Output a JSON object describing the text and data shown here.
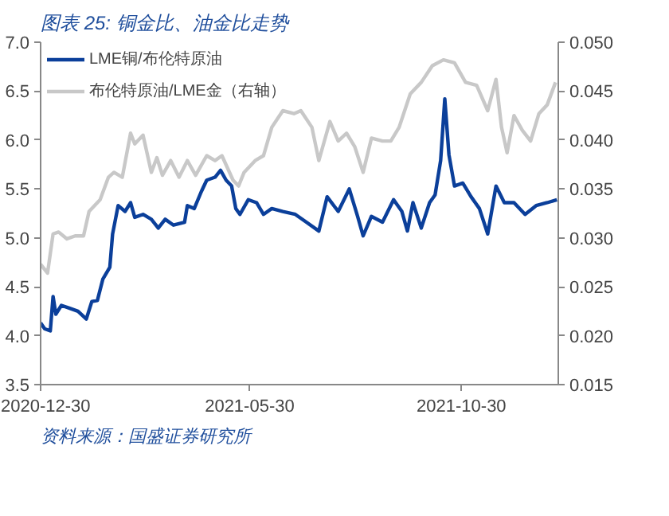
{
  "chart_data": {
    "type": "line",
    "title": "图表 25: 铜金比、油金比走势",
    "annotations": [
      "资料来源：国盛证券研究所"
    ],
    "xlim": [
      "2020-12-30",
      "2022-01-08"
    ],
    "xticks": [
      "2020-12-30",
      "2021-05-30",
      "2021-10-30"
    ],
    "ylim": [
      3.5,
      7.0
    ],
    "yticks": [
      {
        "value": 3.5,
        "label": "3.5"
      },
      {
        "value": 4.0,
        "label": "4.0"
      },
      {
        "value": 4.5,
        "label": "4.5"
      },
      {
        "value": 5.0,
        "label": "5.0"
      },
      {
        "value": 5.5,
        "label": "5.5"
      },
      {
        "value": 6.0,
        "label": "6.0"
      },
      {
        "value": 6.5,
        "label": "6.5"
      },
      {
        "value": 7.0,
        "label": "7.0"
      }
    ],
    "y2lim": [
      0.015,
      0.05
    ],
    "y2ticks": [
      {
        "value": 0.015,
        "label": "0.015"
      },
      {
        "value": 0.02,
        "label": "0.020"
      },
      {
        "value": 0.025,
        "label": "0.025"
      },
      {
        "value": 0.03,
        "label": "0.030"
      },
      {
        "value": 0.035,
        "label": "0.035"
      },
      {
        "value": 0.04,
        "label": "0.040"
      },
      {
        "value": 0.045,
        "label": "0.045"
      },
      {
        "value": 0.05,
        "label": "0.050"
      }
    ],
    "grid": false,
    "legend": "top",
    "marker": "none",
    "line_style": "solid",
    "series": [
      {
        "name": "LME铜/布伦特原油",
        "color": "#0b3f9a",
        "x": [
          "2020-12-30",
          "2021-01-02",
          "2021-01-06",
          "2021-01-08",
          "2021-01-10",
          "2021-01-14",
          "2021-01-20",
          "2021-01-26",
          "2021-02-01",
          "2021-02-05",
          "2021-02-09",
          "2021-02-13",
          "2021-02-18",
          "2021-02-20",
          "2021-02-24",
          "2021-03-01",
          "2021-03-05",
          "2021-03-08",
          "2021-03-14",
          "2021-03-20",
          "2021-03-25",
          "2021-03-30",
          "2021-04-05",
          "2021-04-13",
          "2021-04-15",
          "2021-04-20",
          "2021-04-25",
          "2021-04-29",
          "2021-05-05",
          "2021-05-09",
          "2021-05-13",
          "2021-05-17",
          "2021-05-20",
          "2021-05-23",
          "2021-05-29",
          "2021-06-04",
          "2021-06-09",
          "2021-06-15",
          "2021-06-23",
          "2021-07-02",
          "2021-07-10",
          "2021-07-19",
          "2021-07-25",
          "2021-08-02",
          "2021-08-10",
          "2021-08-16",
          "2021-08-20",
          "2021-08-26",
          "2021-09-03",
          "2021-09-11",
          "2021-09-17",
          "2021-09-21",
          "2021-09-25",
          "2021-10-01",
          "2021-10-07",
          "2021-10-11",
          "2021-10-15",
          "2021-10-18",
          "2021-10-21",
          "2021-10-25",
          "2021-10-31",
          "2021-11-06",
          "2021-11-12",
          "2021-11-18",
          "2021-11-24",
          "2021-11-30",
          "2021-12-07",
          "2021-12-15",
          "2021-12-23",
          "2021-12-31",
          "2022-01-07"
        ],
        "values": [
          4.13,
          4.07,
          4.05,
          4.4,
          4.22,
          4.31,
          4.28,
          4.25,
          4.17,
          4.35,
          4.36,
          4.58,
          4.7,
          5.04,
          5.33,
          5.27,
          5.36,
          5.21,
          5.24,
          5.19,
          5.1,
          5.19,
          5.13,
          5.16,
          5.33,
          5.3,
          5.47,
          5.59,
          5.62,
          5.69,
          5.59,
          5.53,
          5.3,
          5.24,
          5.39,
          5.36,
          5.24,
          5.3,
          5.27,
          5.24,
          5.16,
          5.07,
          5.42,
          5.27,
          5.5,
          5.22,
          5.02,
          5.22,
          5.16,
          5.39,
          5.27,
          5.07,
          5.36,
          5.1,
          5.36,
          5.44,
          5.79,
          6.42,
          5.85,
          5.53,
          5.56,
          5.42,
          5.3,
          5.04,
          5.53,
          5.36,
          5.36,
          5.24,
          5.33,
          5.36,
          5.39
        ]
      },
      {
        "name": "布伦特原油/LME金（右轴）",
        "color": "#c8c8c8",
        "axis": "y2",
        "x": [
          "2020-12-30",
          "2021-01-04",
          "2021-01-08",
          "2021-01-12",
          "2021-01-18",
          "2021-01-24",
          "2021-01-30",
          "2021-02-03",
          "2021-02-11",
          "2021-02-17",
          "2021-02-21",
          "2021-02-27",
          "2021-03-05",
          "2021-03-08",
          "2021-03-14",
          "2021-03-20",
          "2021-03-24",
          "2021-03-28",
          "2021-04-03",
          "2021-04-09",
          "2021-04-15",
          "2021-04-21",
          "2021-04-29",
          "2021-05-05",
          "2021-05-10",
          "2021-05-18",
          "2021-05-22",
          "2021-05-26",
          "2021-06-03",
          "2021-06-09",
          "2021-06-15",
          "2021-06-23",
          "2021-07-01",
          "2021-07-06",
          "2021-07-14",
          "2021-07-19",
          "2021-07-27",
          "2021-08-02",
          "2021-08-08",
          "2021-08-14",
          "2021-08-20",
          "2021-08-26",
          "2021-09-03",
          "2021-09-09",
          "2021-09-15",
          "2021-09-23",
          "2021-10-01",
          "2021-10-09",
          "2021-10-17",
          "2021-10-25",
          "2021-11-02",
          "2021-11-10",
          "2021-11-18",
          "2021-11-24",
          "2021-11-28",
          "2021-12-02",
          "2021-12-07",
          "2021-12-13",
          "2021-12-19",
          "2021-12-25",
          "2021-12-31",
          "2022-01-06"
        ],
        "values": [
          0.0273,
          0.0264,
          0.0304,
          0.0306,
          0.0299,
          0.0302,
          0.0302,
          0.0327,
          0.0339,
          0.0362,
          0.0367,
          0.0362,
          0.0407,
          0.0396,
          0.0405,
          0.0367,
          0.0382,
          0.0364,
          0.0379,
          0.0362,
          0.0379,
          0.0364,
          0.0384,
          0.0379,
          0.0384,
          0.0359,
          0.0353,
          0.0367,
          0.0379,
          0.0384,
          0.0413,
          0.043,
          0.0427,
          0.043,
          0.0413,
          0.0379,
          0.0419,
          0.0399,
          0.0407,
          0.0393,
          0.0367,
          0.0402,
          0.0399,
          0.0399,
          0.0413,
          0.0447,
          0.0459,
          0.0476,
          0.0482,
          0.0479,
          0.0459,
          0.0456,
          0.043,
          0.0462,
          0.0413,
          0.0387,
          0.0425,
          0.041,
          0.0399,
          0.0427,
          0.0436,
          0.0459
        ]
      }
    ]
  }
}
